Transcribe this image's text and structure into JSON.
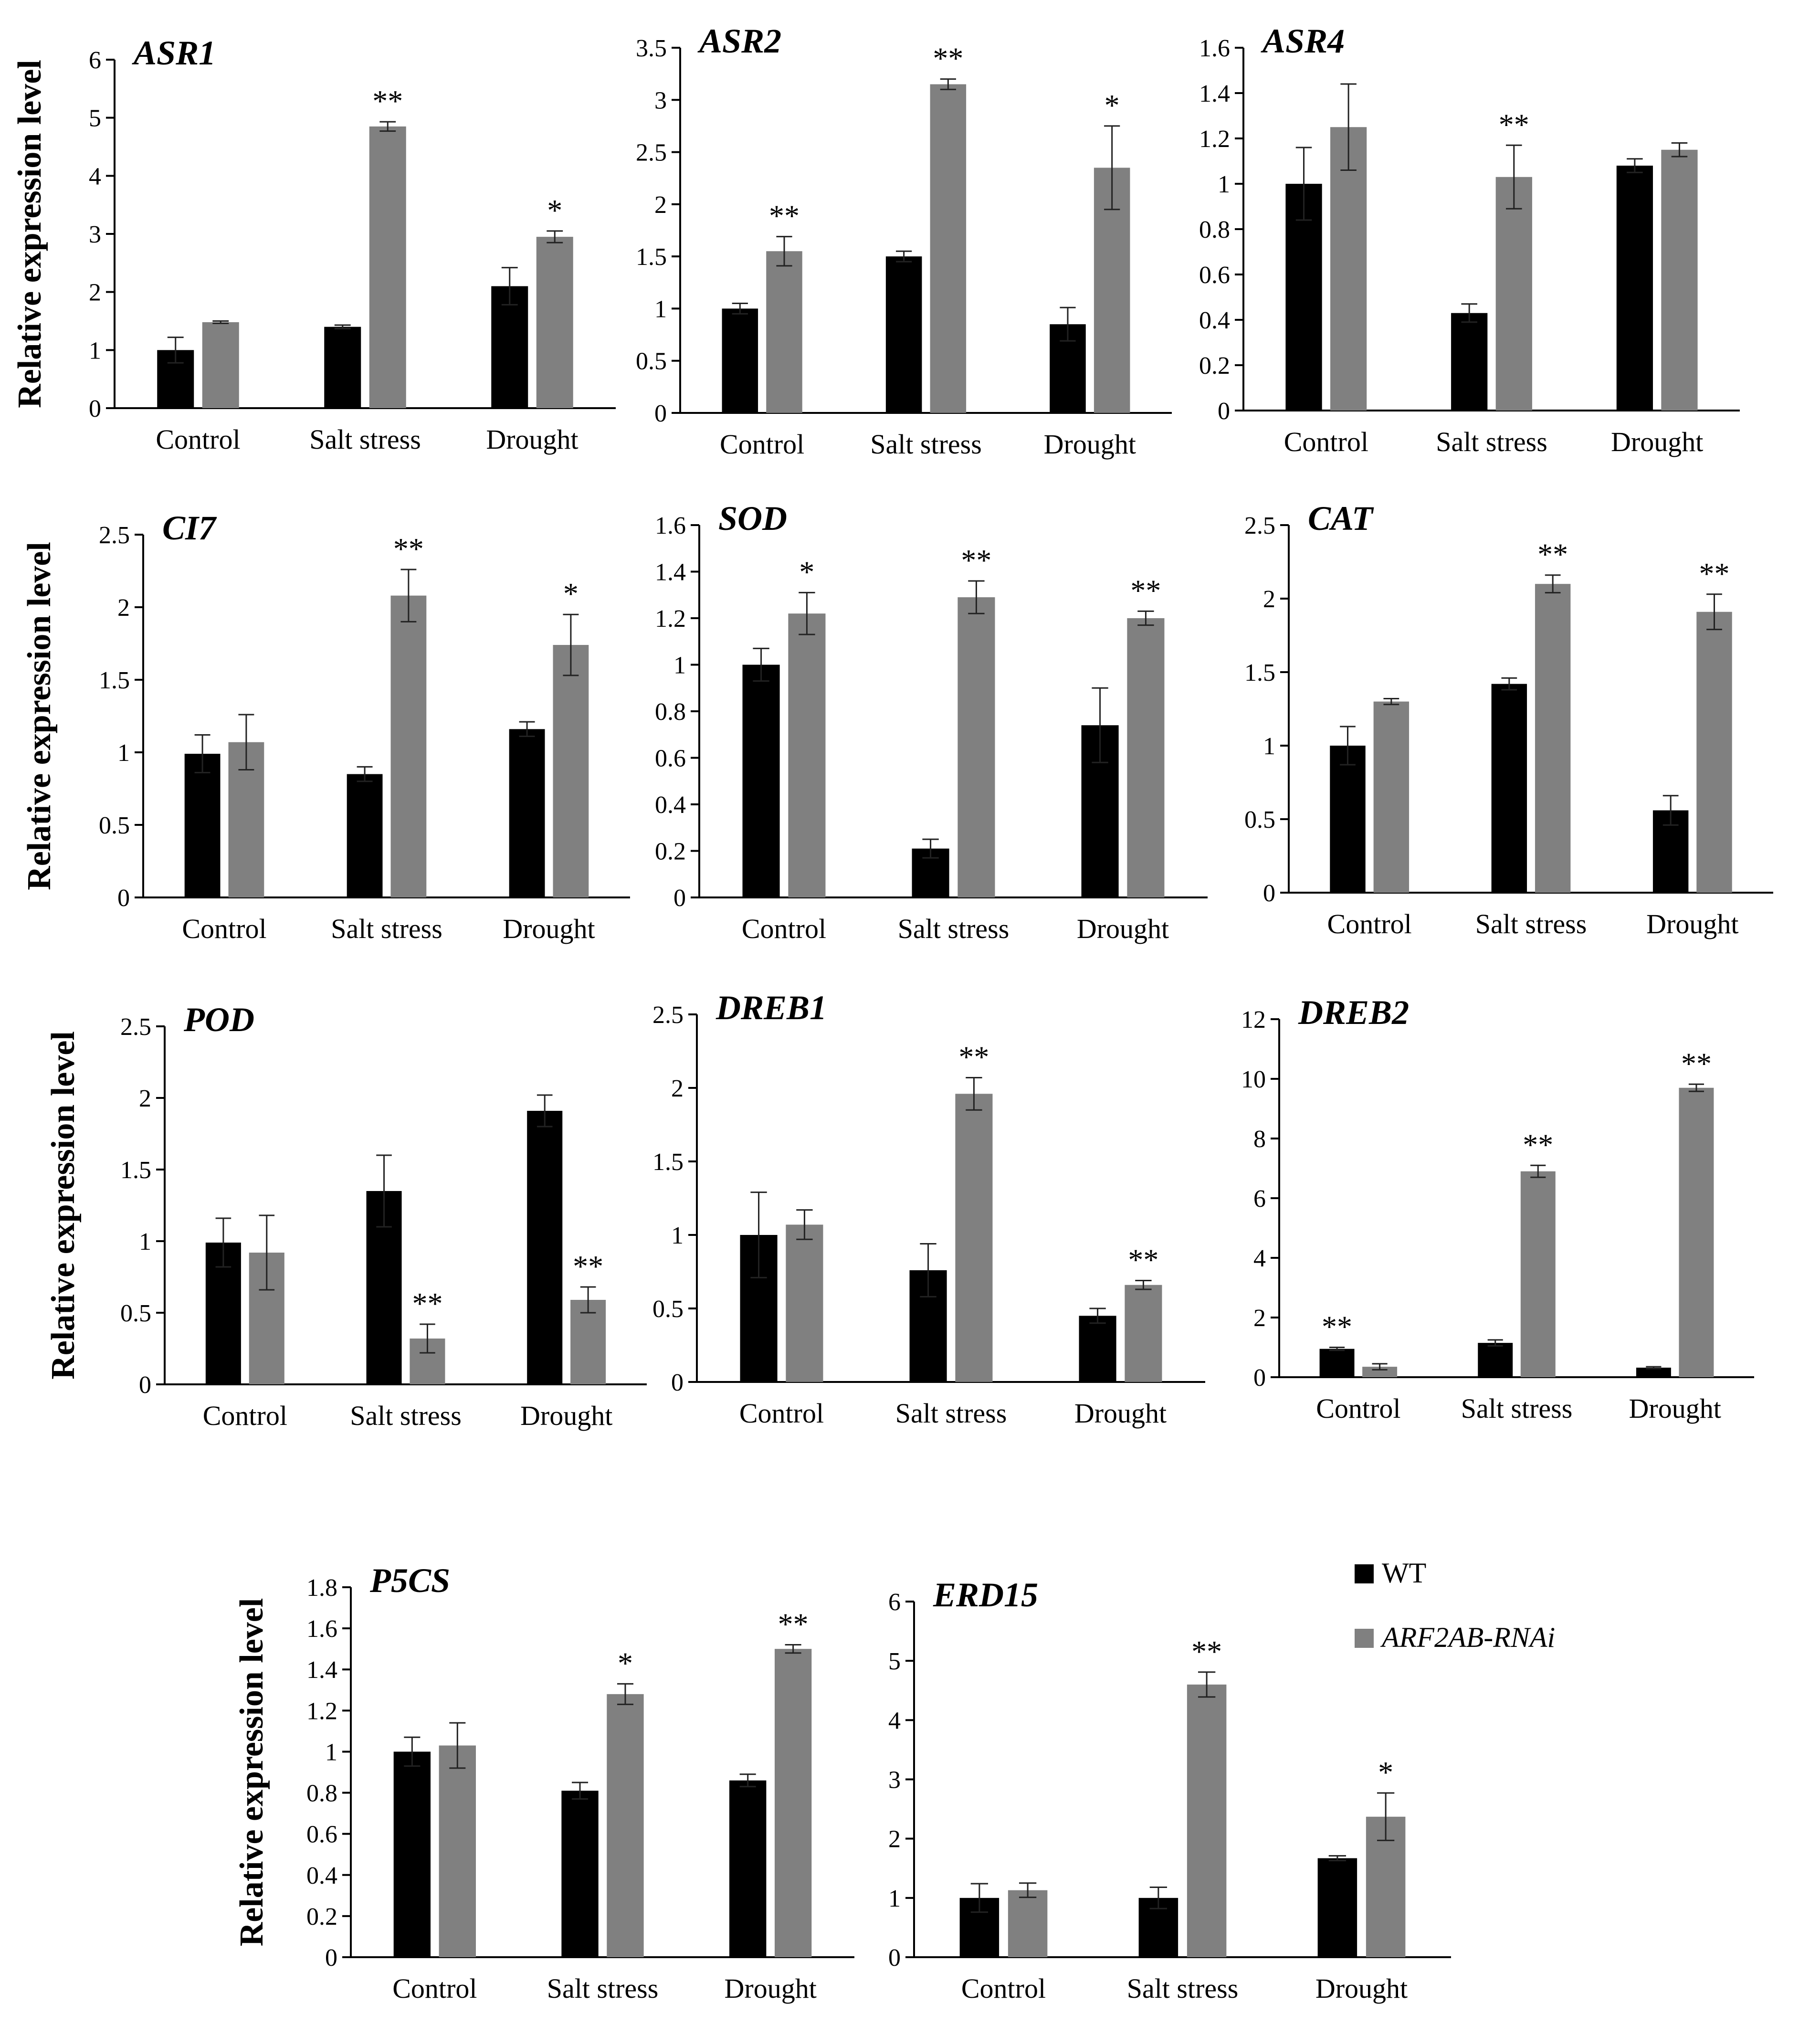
{
  "figure": {
    "ylabel": "Relative expression level",
    "legend": [
      {
        "label": "WT",
        "italic": false,
        "color": "#000000"
      },
      {
        "label": "ARF2AB-RNAi",
        "italic": true,
        "color": "#808080"
      }
    ]
  },
  "chart_data": [
    {
      "type": "bar",
      "title": "ASR1",
      "ylabel": "Relative expression level",
      "categories": [
        "Control",
        "Salt stress",
        "Drought"
      ],
      "ylim": [
        0,
        6
      ],
      "yticks": [
        "0",
        "1",
        "2",
        "3",
        "4",
        "5",
        "6"
      ],
      "series": [
        {
          "name": "WT",
          "color": "#000000",
          "values": [
            1.0,
            1.4,
            2.1
          ],
          "errors": [
            0.22,
            0.03,
            0.32
          ]
        },
        {
          "name": "ARF2AB-RNAi",
          "color": "#808080",
          "values": [
            1.48,
            4.85,
            2.95
          ],
          "errors": [
            0.02,
            0.08,
            0.1
          ]
        }
      ],
      "significance": {
        "WT": [
          "",
          "",
          ""
        ],
        "ARF2AB-RNAi": [
          "",
          "**",
          "*"
        ]
      }
    },
    {
      "type": "bar",
      "title": "ASR2",
      "ylabel": "",
      "categories": [
        "Control",
        "Salt stress",
        "Drought"
      ],
      "ylim": [
        0,
        3.5
      ],
      "yticks": [
        "0",
        "0.5",
        "1",
        "1.5",
        "2",
        "2.5",
        "3",
        "3.5"
      ],
      "series": [
        {
          "name": "WT",
          "color": "#000000",
          "values": [
            1.0,
            1.5,
            0.85
          ],
          "errors": [
            0.05,
            0.05,
            0.16
          ]
        },
        {
          "name": "ARF2AB-RNAi",
          "color": "#808080",
          "values": [
            1.55,
            3.15,
            2.35
          ],
          "errors": [
            0.14,
            0.05,
            0.4
          ]
        }
      ],
      "significance": {
        "WT": [
          "",
          "",
          ""
        ],
        "ARF2AB-RNAi": [
          "**",
          "**",
          "*"
        ]
      }
    },
    {
      "type": "bar",
      "title": "ASR4",
      "ylabel": "",
      "categories": [
        "Control",
        "Salt stress",
        "Drought"
      ],
      "ylim": [
        0,
        1.6
      ],
      "yticks": [
        "0",
        "0.2",
        "0.4",
        "0.6",
        "0.8",
        "1",
        "1.2",
        "1.4",
        "1.6"
      ],
      "series": [
        {
          "name": "WT",
          "color": "#000000",
          "values": [
            1.0,
            0.43,
            1.08
          ],
          "errors": [
            0.16,
            0.04,
            0.03
          ]
        },
        {
          "name": "ARF2AB-RNAi",
          "color": "#808080",
          "values": [
            1.25,
            1.03,
            1.15
          ],
          "errors": [
            0.19,
            0.14,
            0.03
          ]
        }
      ],
      "significance": {
        "WT": [
          "",
          "",
          ""
        ],
        "ARF2AB-RNAi": [
          "",
          "**",
          ""
        ]
      }
    },
    {
      "type": "bar",
      "title": "CI7",
      "ylabel": "Relative expression level",
      "categories": [
        "Control",
        "Salt stress",
        "Drought"
      ],
      "ylim": [
        0,
        2.5
      ],
      "yticks": [
        "0",
        "0.5",
        "1",
        "1.5",
        "2",
        "2.5"
      ],
      "series": [
        {
          "name": "WT",
          "color": "#000000",
          "values": [
            0.99,
            0.85,
            1.16
          ],
          "errors": [
            0.13,
            0.05,
            0.05
          ]
        },
        {
          "name": "ARF2AB-RNAi",
          "color": "#808080",
          "values": [
            1.07,
            2.08,
            1.74
          ],
          "errors": [
            0.19,
            0.18,
            0.21
          ]
        }
      ],
      "significance": {
        "WT": [
          "",
          "",
          ""
        ],
        "ARF2AB-RNAi": [
          "",
          "**",
          "*"
        ]
      }
    },
    {
      "type": "bar",
      "title": "SOD",
      "ylabel": "",
      "categories": [
        "Control",
        "Salt stress",
        "Drought"
      ],
      "ylim": [
        0,
        1.6
      ],
      "yticks": [
        "0",
        "0.2",
        "0.4",
        "0.6",
        "0.8",
        "1",
        "1.2",
        "1.4",
        "1.6"
      ],
      "series": [
        {
          "name": "WT",
          "color": "#000000",
          "values": [
            1.0,
            0.21,
            0.74
          ],
          "errors": [
            0.07,
            0.04,
            0.16
          ]
        },
        {
          "name": "ARF2AB-RNAi",
          "color": "#808080",
          "values": [
            1.22,
            1.29,
            1.2
          ],
          "errors": [
            0.09,
            0.07,
            0.03
          ]
        }
      ],
      "significance": {
        "WT": [
          "",
          "",
          ""
        ],
        "ARF2AB-RNAi": [
          "*",
          "**",
          "**"
        ]
      }
    },
    {
      "type": "bar",
      "title": "CAT",
      "ylabel": "",
      "categories": [
        "Control",
        "Salt stress",
        "Drought"
      ],
      "ylim": [
        0,
        2.5
      ],
      "yticks": [
        "0",
        "0.5",
        "1",
        "1.5",
        "2",
        "2.5"
      ],
      "series": [
        {
          "name": "WT",
          "color": "#000000",
          "values": [
            1.0,
            1.42,
            0.56
          ],
          "errors": [
            0.13,
            0.04,
            0.1
          ]
        },
        {
          "name": "ARF2AB-RNAi",
          "color": "#808080",
          "values": [
            1.3,
            2.1,
            1.91
          ],
          "errors": [
            0.02,
            0.06,
            0.12
          ]
        }
      ],
      "significance": {
        "WT": [
          "",
          "",
          ""
        ],
        "ARF2AB-RNAi": [
          "",
          "**",
          "**"
        ]
      }
    },
    {
      "type": "bar",
      "title": "POD",
      "ylabel": "Relative expression level",
      "categories": [
        "Control",
        "Salt stress",
        "Drought"
      ],
      "ylim": [
        0,
        2.5
      ],
      "yticks": [
        "0",
        "0.5",
        "1",
        "1.5",
        "2",
        "2.5"
      ],
      "series": [
        {
          "name": "WT",
          "color": "#000000",
          "values": [
            0.99,
            1.35,
            1.91
          ],
          "errors": [
            0.17,
            0.25,
            0.11
          ]
        },
        {
          "name": "ARF2AB-RNAi",
          "color": "#808080",
          "values": [
            0.92,
            0.32,
            0.59
          ],
          "errors": [
            0.26,
            0.1,
            0.09
          ]
        }
      ],
      "significance": {
        "WT": [
          "",
          "",
          ""
        ],
        "ARF2AB-RNAi": [
          "",
          "**",
          "**"
        ]
      }
    },
    {
      "type": "bar",
      "title": "DREB1",
      "ylabel": "",
      "categories": [
        "Control",
        "Salt stress",
        "Drought"
      ],
      "ylim": [
        0,
        2.5
      ],
      "yticks": [
        "0",
        "0.5",
        "1",
        "1.5",
        "2",
        "2.5"
      ],
      "series": [
        {
          "name": "WT",
          "color": "#000000",
          "values": [
            1.0,
            0.76,
            0.45
          ],
          "errors": [
            0.29,
            0.18,
            0.05
          ]
        },
        {
          "name": "ARF2AB-RNAi",
          "color": "#808080",
          "values": [
            1.07,
            1.96,
            0.66
          ],
          "errors": [
            0.1,
            0.11,
            0.03
          ]
        }
      ],
      "significance": {
        "WT": [
          "",
          "",
          ""
        ],
        "ARF2AB-RNAi": [
          "",
          "**",
          "**"
        ]
      }
    },
    {
      "type": "bar",
      "title": "DREB2",
      "ylabel": "",
      "categories": [
        "Control",
        "Salt stress",
        "Drought"
      ],
      "ylim": [
        0,
        12
      ],
      "yticks": [
        "0",
        "2",
        "4",
        "6",
        "8",
        "10",
        "12"
      ],
      "series": [
        {
          "name": "WT",
          "color": "#000000",
          "values": [
            0.95,
            1.15,
            0.32
          ],
          "errors": [
            0.05,
            0.1,
            0.03
          ]
        },
        {
          "name": "ARF2AB-RNAi",
          "color": "#808080",
          "values": [
            0.35,
            6.9,
            9.7
          ],
          "errors": [
            0.1,
            0.2,
            0.12
          ]
        }
      ],
      "significance": {
        "WT": [
          "**",
          "",
          ""
        ],
        "ARF2AB-RNAi": [
          "",
          "**",
          "**"
        ]
      }
    },
    {
      "type": "bar",
      "title": "P5CS",
      "ylabel": "Relative expression level",
      "categories": [
        "Control",
        "Salt stress",
        "Drought"
      ],
      "ylim": [
        0,
        1.8
      ],
      "yticks": [
        "0",
        "0.2",
        "0.4",
        "0.6",
        "0.8",
        "1",
        "1.2",
        "1.4",
        "1.6",
        "1.8"
      ],
      "series": [
        {
          "name": "WT",
          "color": "#000000",
          "values": [
            1.0,
            0.81,
            0.86
          ],
          "errors": [
            0.07,
            0.04,
            0.03
          ]
        },
        {
          "name": "ARF2AB-RNAi",
          "color": "#808080",
          "values": [
            1.03,
            1.28,
            1.5
          ],
          "errors": [
            0.11,
            0.05,
            0.02
          ]
        }
      ],
      "significance": {
        "WT": [
          "",
          "",
          ""
        ],
        "ARF2AB-RNAi": [
          "",
          "*",
          "**"
        ]
      }
    },
    {
      "type": "bar",
      "title": "ERD15",
      "ylabel": "",
      "categories": [
        "Control",
        "Salt stress",
        "Drought"
      ],
      "ylim": [
        0,
        6
      ],
      "yticks": [
        "0",
        "1",
        "2",
        "3",
        "4",
        "5",
        "6"
      ],
      "series": [
        {
          "name": "WT",
          "color": "#000000",
          "values": [
            1.0,
            1.0,
            1.67
          ],
          "errors": [
            0.24,
            0.18,
            0.04
          ]
        },
        {
          "name": "ARF2AB-RNAi",
          "color": "#808080",
          "values": [
            1.13,
            4.6,
            2.37
          ],
          "errors": [
            0.12,
            0.21,
            0.4
          ]
        }
      ],
      "significance": {
        "WT": [
          "",
          "",
          ""
        ],
        "ARF2AB-RNAi": [
          "",
          "**",
          "*"
        ]
      }
    }
  ]
}
